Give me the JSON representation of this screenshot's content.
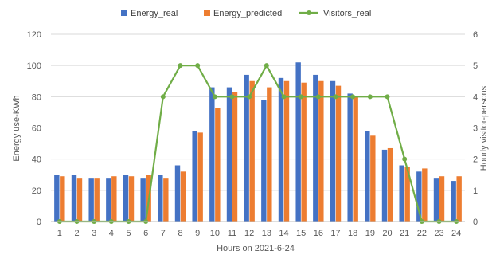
{
  "chart_data": {
    "type": "bar",
    "categories": [
      "1",
      "2",
      "3",
      "4",
      "5",
      "6",
      "7",
      "8",
      "9",
      "10",
      "11",
      "12",
      "13",
      "14",
      "15",
      "16",
      "17",
      "18",
      "19",
      "20",
      "21",
      "22",
      "23",
      "24"
    ],
    "series": [
      {
        "name": "Energy_real",
        "kind": "bar",
        "axis": "left",
        "color": "#4472C4",
        "values": [
          30,
          30,
          28,
          28,
          30,
          28,
          30,
          36,
          58,
          86,
          86,
          94,
          78,
          92,
          102,
          94,
          90,
          82,
          58,
          46,
          36,
          32,
          28,
          26
        ]
      },
      {
        "name": "Energy_predicted",
        "kind": "bar",
        "axis": "left",
        "color": "#ED7D31",
        "values": [
          29,
          28,
          28,
          29,
          29,
          30,
          28,
          32,
          57,
          73,
          83,
          90,
          86,
          90,
          89,
          90,
          87,
          80,
          55,
          47,
          35,
          34,
          29,
          29
        ]
      },
      {
        "name": "Visitors_real",
        "kind": "line",
        "axis": "right",
        "color": "#70AD47",
        "values": [
          0,
          0,
          0,
          0,
          0,
          0,
          4,
          5,
          5,
          4,
          4,
          4,
          5,
          4,
          4,
          4,
          4,
          4,
          4,
          4,
          2,
          0,
          0,
          0
        ]
      }
    ],
    "xlabel": "Hours on 2021-6-24",
    "ylabel": "Energy use-KWh",
    "y2label": "Hourly visitor-persons",
    "ylim": [
      0,
      120
    ],
    "yticks": [
      0,
      20,
      40,
      60,
      80,
      100,
      120
    ],
    "y2lim": [
      0,
      6
    ],
    "y2ticks": [
      0,
      1,
      2,
      3,
      4,
      5,
      6
    ],
    "grid": true,
    "legend_position": "top"
  }
}
